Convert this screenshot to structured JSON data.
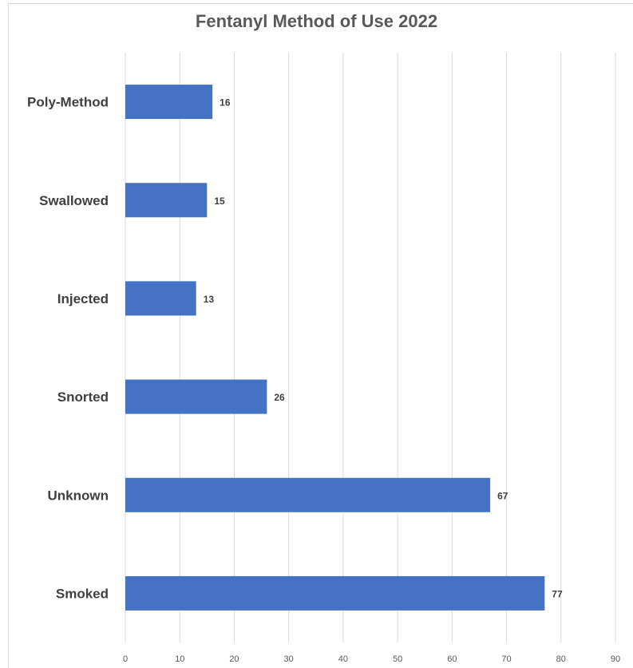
{
  "chart_data": {
    "type": "bar",
    "orientation": "horizontal",
    "title": "Fentanyl Method of Use 2022",
    "xlabel": "",
    "ylabel": "",
    "categories": [
      "Poly-Method",
      "Swallowed",
      "Injected",
      "Snorted",
      "Unknown",
      "Smoked"
    ],
    "values": [
      16,
      15,
      13,
      26,
      67,
      77
    ],
    "xlim": [
      0,
      90
    ],
    "x_ticks": [
      0,
      10,
      20,
      30,
      40,
      50,
      60,
      70,
      80,
      90
    ],
    "grid": "vertical",
    "legend": "none",
    "data_labels": true,
    "bar_color": "#4472c4"
  }
}
